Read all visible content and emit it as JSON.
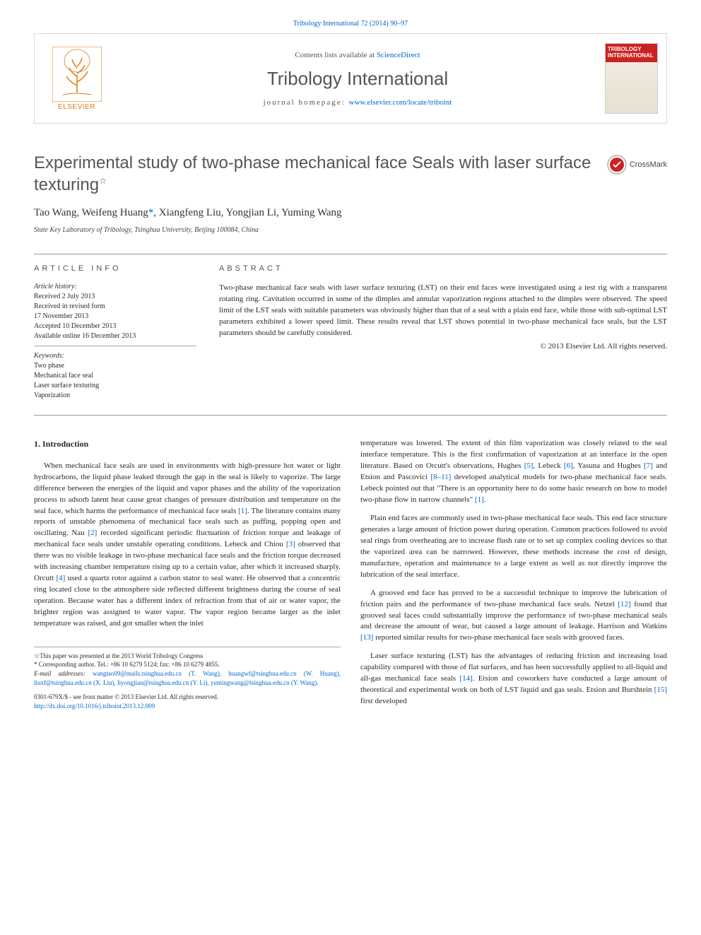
{
  "top_link": "Tribology International 72 (2014) 90–97",
  "header": {
    "publisher_name": "ELSEVIER",
    "publisher_color": "#e67817",
    "contents_prefix": "Contents lists available at ",
    "contents_link": "ScienceDirect",
    "journal_name": "Tribology International",
    "homepage_prefix": "journal homepage: ",
    "homepage_url": "www.elsevier.com/locate/triboint",
    "cover_title": "TRIBOLOGY INTERNATIONAL",
    "cover_bg": "#cc2222"
  },
  "title": "Experimental study of two-phase mechanical face Seals with laser surface texturing",
  "title_note": "☆",
  "crossmark_label": "CrossMark",
  "authors_html": "Tao Wang, Weifeng Huang",
  "corr_mark": "*",
  "authors_rest": ", Xiangfeng Liu, Yongjian Li, Yuming Wang",
  "affiliation": "State Key Laboratory of Tribology, Tsinghua University, Beijing 100084, China",
  "info": {
    "label": "ARTICLE INFO",
    "history_label": "Article history:",
    "history": [
      "Received 2 July 2013",
      "Received in revised form",
      "17 November 2013",
      "Accepted 10 December 2013",
      "Available online 16 December 2013"
    ],
    "keywords_label": "Keywords:",
    "keywords": [
      "Two phase",
      "Mechanical face seal",
      "Laser surface texturing",
      "Vaporization"
    ]
  },
  "abstract": {
    "label": "ABSTRACT",
    "text": "Two-phase mechanical face seals with laser surface texturing (LST) on their end faces were investigated using a test rig with a transparent rotating ring. Cavitation occurred in some of the dimples and annular vaporization regions attached to the dimples were observed. The speed limit of the LST seals with suitable parameters was obviously higher than that of a seal with a plain end face, while those with sub-optimal LST parameters exhibited a lower speed limit. These results reveal that LST shows potential in two-phase mechanical face seals, but the LST parameters should be carefully considered.",
    "copyright": "© 2013 Elsevier Ltd. All rights reserved."
  },
  "body": {
    "heading": "1. Introduction",
    "left_paras": [
      "When mechanical face seals are used in environments with high-pressure hot water or light hydrocarbons, the liquid phase leaked through the gap in the seal is likely to vaporize. The large difference between the energies of the liquid and vapor phases and the ability of the vaporization process to adsorb latent heat cause great changes of pressure distribution and temperature on the seal face, which harms the performance of mechanical face seals <span class='ref-link'>[1]</span>. The literature contains many reports of unstable phenomena of mechanical face seals such as puffing, popping open and oscillating. Nau <span class='ref-link'>[2]</span> recorded significant periodic fluctuation of friction torque and leakage of mechanical face seals under unstable operating conditions. Lebeck and Chiou <span class='ref-link'>[3]</span> observed that there was no visible leakage in two-phase mechanical face seals and the friction torque decreased with increasing chamber temperature rising up to a certain value, after which it increased sharply. Orcutt <span class='ref-link'>[4]</span> used a quartz rotor against a carbon stator to seal water. He observed that a concentric ring located close to the atmosphere side reflected different brightness during the course of seal operation. Because water has a different index of refraction from that of air or water vapor, the brighter region was assigned to water vapor. The vapor region became larger as the inlet temperature was raised, and got smaller when the inlet"
    ],
    "right_paras": [
      "temperature was lowered. The extent of thin film vaporization was closely related to the seal interface temperature. This is the first confirmation of vaporization at an interface in the open literature. Based on Orcutt's observations, Hughes <span class='ref-link'>[5]</span>, Lebeck <span class='ref-link'>[6]</span>, Yasuna and Hughes <span class='ref-link'>[7]</span> and Etsion and Pascovici <span class='ref-link'>[8–11]</span> developed analytical models for two-phase mechanical face seals. Lebeck pointed out that \"There is an opportunity here to do some basic research on how to model two-phase flow in narrow channels\" <span class='ref-link'>[1]</span>.",
      "Plain end faces are commonly used in two-phase mechanical face seals. This end face structure generates a large amount of friction power during operation. Common practices followed to avoid seal rings from overheating are to increase flush rate or to set up complex cooling devices so that the vaporized area can be narrowed. However, these methods increase the cost of design, manufacture, operation and maintenance to a large extent as well as not directly improve the lubrication of the seal interface.",
      "A grooved end face has proved to be a successful technique to improve the lubrication of friction pairs and the performance of two-phase mechanical face seals. Netzel <span class='ref-link'>[12]</span> found that grooved seal faces could substantially improve the performance of two-phase mechanical seals and decrease the amount of wear, but caused a large amount of leakage. Harrison and Watkins <span class='ref-link'>[13]</span> reported similar results for two-phase mechanical face seals with grooved faces.",
      "Laser surface texturing (LST) has the advantages of reducing friction and increasing load capability compared with those of flat surfaces, and has been successfully applied to all-liquid and all-gas mechanical face seals <span class='ref-link'>[14]</span>. Etsion and coworkers have conducted a large amount of theoretical and experimental work on both of LST liquid and gas seals. Etsion and Burshtein <span class='ref-link'>[15]</span> first developed"
    ]
  },
  "footnotes": {
    "conf": "☆This paper was presented at the 2013 World Tribology Congress",
    "corr": "* Corresponding author. Tel.: +86 10 6279 5124; fax: +86 10 6279 4855.",
    "email_label": "E-mail addresses: ",
    "emails": "wangtao09@mails.tsinghua.edu.cn (T. Wang), huangwf@tsinghua.edu.cn (W. Huang), liuxf@tsinghua.edu.cn (X. Liu), liyongjian@tsinghua.edu.cn (Y. Li), yumingwang@tsinghua.edu.cn (Y. Wang)."
  },
  "footer": {
    "issn": "0301-679X/$ - see front matter © 2013 Elsevier Ltd. All rights reserved.",
    "doi": "http://dx.doi.org/10.1016/j.triboint.2013.12.009"
  },
  "colors": {
    "link": "#0066cc",
    "text": "#2a2a2a",
    "heading_grey": "#555",
    "border": "#d8d8d8"
  }
}
